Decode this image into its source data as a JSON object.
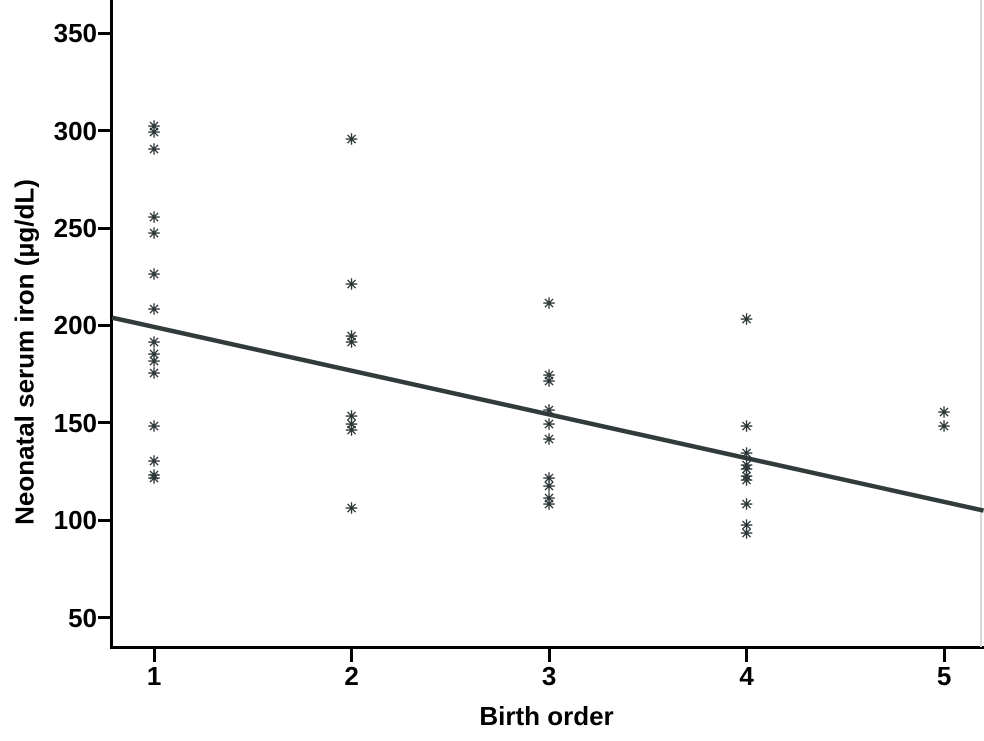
{
  "figure": {
    "background": "#ffffff"
  },
  "chart_data": {
    "type": "scatter",
    "title": "",
    "xlabel": "Birth order",
    "ylabel": "Neonatal serum iron (µg/dL)",
    "x_ticks": [
      1,
      2,
      3,
      4,
      5
    ],
    "y_ticks": [
      350,
      300,
      250,
      200,
      150,
      100,
      50
    ],
    "x_range": [
      0.787,
      5.187
    ],
    "y_range": [
      35,
      367
    ],
    "grid": false,
    "legend": "none",
    "marker_glyph": "✳",
    "colors": {
      "marker": "#2c3636",
      "trend_line": "#323b3b",
      "axis": "#000000",
      "frame_right": "#d7dbd7"
    },
    "series": [
      {
        "name": "Birth order 1",
        "x": 1,
        "values": [
          302,
          299,
          290,
          255,
          247,
          226,
          208,
          191,
          185,
          181,
          175,
          148,
          130,
          123,
          121
        ]
      },
      {
        "name": "Birth order 2",
        "x": 2,
        "values": [
          295,
          221,
          194,
          191,
          153,
          149,
          146,
          106
        ]
      },
      {
        "name": "Birth order 3",
        "x": 3,
        "values": [
          211,
          174,
          171,
          156,
          149,
          141,
          121,
          117,
          111,
          108
        ]
      },
      {
        "name": "Birth order 4",
        "x": 4,
        "values": [
          203,
          148,
          134,
          128,
          126,
          122,
          120,
          108,
          97,
          93
        ]
      },
      {
        "name": "Birth order 5",
        "x": 5,
        "values": [
          155,
          148
        ]
      }
    ],
    "trend_line": {
      "x1": 0.787,
      "y1": 204,
      "x2": 5.2,
      "y2": 105
    }
  }
}
